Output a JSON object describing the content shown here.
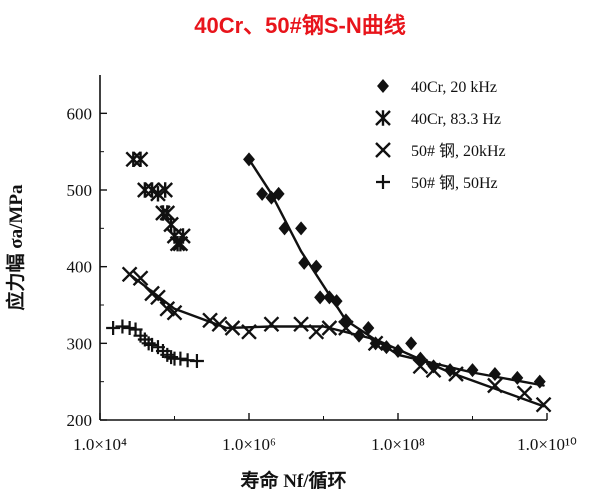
{
  "title": "40Cr、50#钢S-N曲线",
  "chart_data": {
    "type": "scatter",
    "xscale": "log",
    "xlim": [
      10000,
      10000000000
    ],
    "ylim": [
      200,
      650
    ],
    "xlabel": "寿命 Nf/循环",
    "ylabel": "应力幅 σa/MPa",
    "xticks": [
      "1.0×10⁴",
      "1.0×10⁶",
      "1.0×10⁸",
      "1.0×10¹⁰"
    ],
    "yticks": [
      "200",
      "300",
      "400",
      "500",
      "600"
    ],
    "legend_position": "top-right",
    "series": [
      {
        "name": "40Cr, 20 kHz",
        "marker": "diamond",
        "points": [
          [
            1000000,
            540
          ],
          [
            1500000,
            495
          ],
          [
            2000000,
            490
          ],
          [
            2500000,
            495
          ],
          [
            3000000,
            450
          ],
          [
            5000000,
            450
          ],
          [
            5500000,
            405
          ],
          [
            8000000,
            400
          ],
          [
            9000000,
            360
          ],
          [
            12000000,
            360
          ],
          [
            15000000,
            355
          ],
          [
            20000000,
            330
          ],
          [
            30000000,
            310
          ],
          [
            40000000,
            320
          ],
          [
            50000000,
            300
          ],
          [
            70000000,
            295
          ],
          [
            100000000,
            290
          ],
          [
            150000000,
            300
          ],
          [
            200000000,
            280
          ],
          [
            300000000,
            270
          ],
          [
            500000000,
            265
          ],
          [
            1000000000,
            265
          ],
          [
            2000000000,
            260
          ],
          [
            4000000000,
            255
          ],
          [
            8000000000,
            250
          ]
        ]
      },
      {
        "name": "40Cr, 83.3 Hz",
        "marker": "asterisk",
        "points": [
          [
            28000,
            540
          ],
          [
            35000,
            540
          ],
          [
            40000,
            500
          ],
          [
            50000,
            500
          ],
          [
            60000,
            495
          ],
          [
            70000,
            470
          ],
          [
            75000,
            500
          ],
          [
            80000,
            470
          ],
          [
            90000,
            455
          ],
          [
            100000,
            440
          ],
          [
            110000,
            430
          ],
          [
            120000,
            430
          ],
          [
            130000,
            440
          ]
        ]
      },
      {
        "name": "50# 钢, 20kHz",
        "marker": "x",
        "points": [
          [
            25000,
            390
          ],
          [
            35000,
            385
          ],
          [
            50000,
            365
          ],
          [
            60000,
            360
          ],
          [
            80000,
            345
          ],
          [
            100000,
            340
          ],
          [
            300000,
            330
          ],
          [
            400000,
            325
          ],
          [
            600000,
            320
          ],
          [
            1000000,
            315
          ],
          [
            2000000,
            325
          ],
          [
            5000000,
            325
          ],
          [
            8000000,
            315
          ],
          [
            12000000,
            320
          ],
          [
            20000000,
            320
          ],
          [
            50000000,
            300
          ],
          [
            200000000,
            270
          ],
          [
            300000000,
            265
          ],
          [
            600000000,
            260
          ],
          [
            2000000000,
            245
          ],
          [
            5000000000,
            235
          ],
          [
            9000000000,
            220
          ]
        ]
      },
      {
        "name": "50# 钢, 50Hz",
        "marker": "plus",
        "points": [
          [
            15000,
            320
          ],
          [
            20000,
            322
          ],
          [
            25000,
            320
          ],
          [
            30000,
            318
          ],
          [
            35000,
            310
          ],
          [
            40000,
            305
          ],
          [
            45000,
            300
          ],
          [
            50000,
            298
          ],
          [
            60000,
            295
          ],
          [
            70000,
            290
          ],
          [
            80000,
            285
          ],
          [
            90000,
            282
          ],
          [
            100000,
            280
          ],
          [
            120000,
            280
          ],
          [
            150000,
            278
          ],
          [
            200000,
            277
          ]
        ]
      }
    ],
    "fit_lines": [
      {
        "series": "40Cr, 20 kHz",
        "points": [
          [
            1000000,
            540
          ],
          [
            2000000,
            495
          ],
          [
            5000000,
            420
          ],
          [
            20000000,
            330
          ],
          [
            100000000,
            285
          ],
          [
            1000000000,
            262
          ],
          [
            9000000000,
            245
          ]
        ]
      },
      {
        "series": "50# 钢, 20kHz",
        "points": [
          [
            25000,
            390
          ],
          [
            100000,
            345
          ],
          [
            500000,
            320
          ],
          [
            2000000,
            322
          ],
          [
            10000000,
            322
          ],
          [
            50000000,
            305
          ],
          [
            500000000,
            262
          ],
          [
            9000000000,
            218
          ]
        ]
      }
    ]
  }
}
